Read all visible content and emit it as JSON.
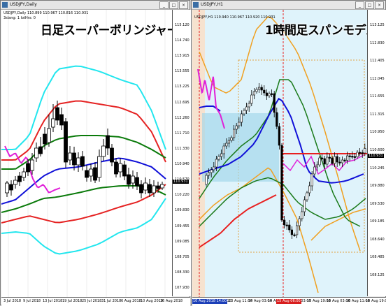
{
  "left": {
    "window_title": "USDJPY,Daily",
    "info_line1": "USDJPY,Daily  110.899 110.967 110.816 110.931",
    "info_line2": "3slang: 1 lotHrs: 0",
    "annotation": "日足スーパーボリンジャー",
    "y_labels": [
      "115.120",
      "114.740",
      "113.915",
      "113.555",
      "113.225",
      "112.695",
      "112.260",
      "111.710",
      "111.330",
      "110.940",
      "110.570",
      "110.220",
      "109.830",
      "109.455",
      "109.085",
      "108.705",
      "108.330",
      "107.930"
    ],
    "price_tag": "110.931",
    "x_labels": [
      "3 Jul 2018",
      "9 Jul 2018",
      "13 Jul 2018",
      "19 Jul 2018",
      "25 Jul 2018",
      "31 Jul 2018",
      "6 Aug 2018",
      "10 Aug 2018",
      "16 Aug 2018"
    ],
    "colors": {
      "upper3": "#22e6ee",
      "upper2": "#e52222",
      "upper1": "#0a7a0a",
      "center": "#1010d8",
      "chikou": "#e020d8"
    }
  },
  "right": {
    "window_title": "USDJPY,H1",
    "info_line1": "USDJPY,H1  110.940 110.967 110.920 110.931",
    "annotation": "1時間足スパンモデル",
    "y_labels": [
      "113.125",
      "112.830",
      "112.405",
      "112.045",
      "111.655",
      "111.315",
      "110.950",
      "110.600",
      "110.245",
      "109.880",
      "109.530",
      "109.185",
      "108.640",
      "108.485",
      "108.125"
    ],
    "price_tag": "110.931",
    "x_labels": [
      "10 Aug 2018",
      "13 Aug 11:00",
      "14 Aug 03:00",
      "14 Aug 19:00",
      "15 Aug 03:00",
      "15 Aug 19:00",
      "16 Aug 03:00",
      "16 Aug 11:00",
      "16 Aug 19:00"
    ],
    "x_highlight_left": "10 Aug 2018 14:00",
    "x_highlight_mid": "15 Aug 06:00",
    "colors": {
      "band": "#a8dcf0",
      "upper": "#f0a020",
      "mid": "#1a7a1a",
      "center": "#1010d8",
      "redline": "#e82020",
      "chikou": "#e020d8"
    }
  }
}
